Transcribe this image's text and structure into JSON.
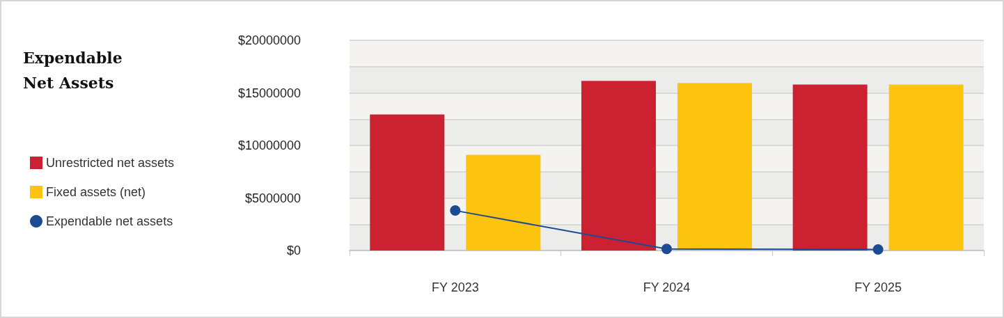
{
  "chart_data": {
    "type": "bar",
    "title": "Expendable\nNet Assets",
    "categories": [
      "FY 2023",
      "FY 2024",
      "FY 2025"
    ],
    "series": [
      {
        "name": "Unrestricted net assets",
        "color": "#cc2131",
        "values": [
          12950000,
          16150000,
          15800000
        ]
      },
      {
        "name": "Fixed assets (net)",
        "color": "#fdc40f",
        "values": [
          9100000,
          15950000,
          15800000
        ]
      },
      {
        "name": "Expendable net assets",
        "type": "line",
        "color": "#1c4b93",
        "values": [
          3800000,
          150000,
          100000
        ]
      }
    ],
    "ylim": [
      0,
      20000000
    ],
    "yticks": [
      {
        "value": 0,
        "label": "$0"
      },
      {
        "value": 2500000,
        "label": null
      },
      {
        "value": 5000000,
        "label": "$5000000"
      },
      {
        "value": 7500000,
        "label": null
      },
      {
        "value": 10000000,
        "label": "$10000000"
      },
      {
        "value": 12500000,
        "label": null
      },
      {
        "value": 15000000,
        "label": "$15000000"
      },
      {
        "value": 17500000,
        "label": null
      },
      {
        "value": 20000000,
        "label": "$20000000"
      }
    ],
    "grid": "y",
    "legend": "left",
    "marker": "circle"
  }
}
